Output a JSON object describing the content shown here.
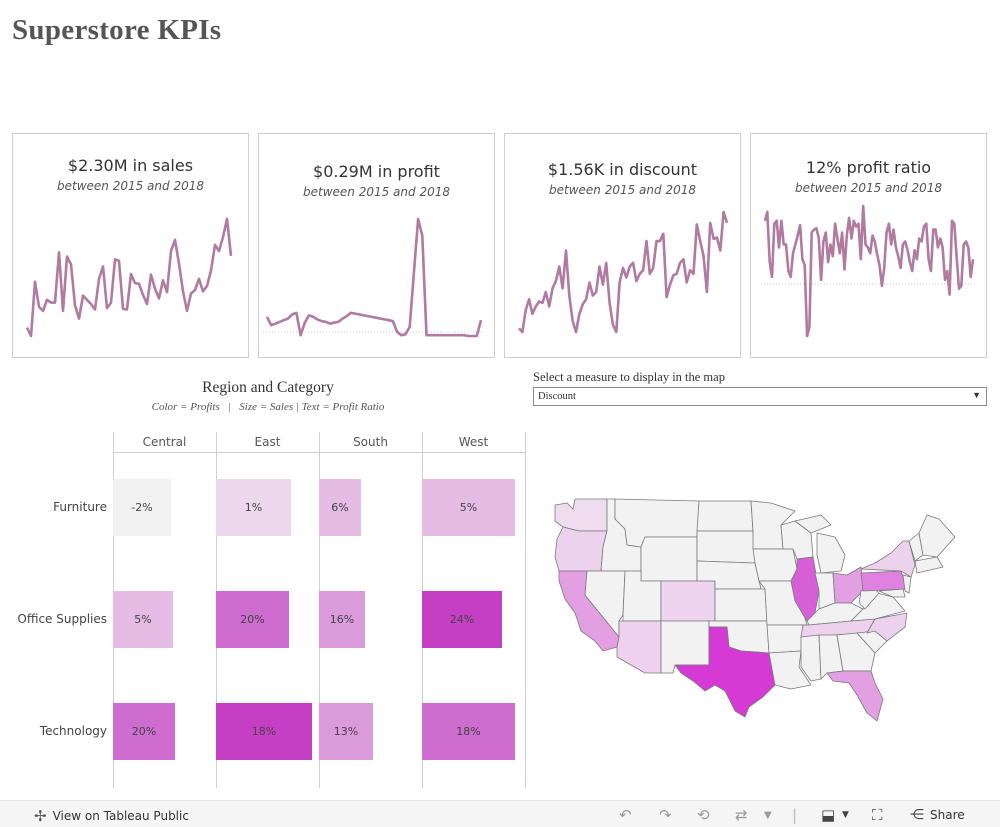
{
  "title": "Superstore  KPIs",
  "colors": {
    "line": "#b07aa1",
    "card_border": "#cfcfcf",
    "light": "#f1f1f1",
    "p1": "#ecd8ec",
    "p2": "#e4bce4",
    "p3": "#db9bdb",
    "p4": "#cf6ccf",
    "p5": "#c43fc4",
    "texas": "#d53ad5"
  },
  "kpis": [
    {
      "value": "$2.30M in sales",
      "subtitle": "between 2015 and 2018",
      "series": [
        22,
        10,
        88,
        52,
        46,
        62,
        58,
        58,
        130,
        46,
        124,
        113,
        54,
        35,
        68,
        62,
        56,
        48,
        92,
        110,
        50,
        58,
        120,
        118,
        49,
        48,
        99,
        86,
        85,
        69,
        56,
        98,
        78,
        64,
        90,
        73,
        132,
        148,
        114,
        74,
        46,
        71,
        76,
        92,
        74,
        82,
        104,
        141,
        132,
        152,
        178,
        125
      ]
    },
    {
      "value": "$0.29M in profit",
      "subtitle": "between 2015 and 2018",
      "series": [
        22,
        12,
        14,
        16,
        18,
        20,
        25,
        27,
        0,
        15,
        24,
        22,
        19,
        17,
        16,
        14,
        15,
        16,
        20,
        23,
        27,
        26,
        25,
        24,
        23,
        22,
        21,
        20,
        19,
        18,
        17,
        4,
        0,
        1,
        10,
        75,
        140,
        120,
        0,
        0,
        0,
        0,
        0,
        0,
        0,
        0,
        0,
        0,
        -1,
        -1,
        -1,
        18
      ]
    },
    {
      "value": "$1.56K in discount",
      "subtitle": "between 2015 and 2018",
      "series": [
        5,
        0,
        30,
        45,
        25,
        35,
        42,
        40,
        55,
        35,
        60,
        70,
        90,
        60,
        112,
        50,
        15,
        0,
        25,
        38,
        45,
        68,
        50,
        55,
        90,
        65,
        95,
        40,
        10,
        0,
        68,
        88,
        75,
        90,
        95,
        70,
        80,
        85,
        125,
        80,
        88,
        125,
        125,
        135,
        48,
        65,
        78,
        80,
        95,
        100,
        68,
        85,
        80,
        148,
        125,
        105,
        55,
        150,
        128,
        130,
        112,
        165,
        150
      ]
    },
    {
      "value": "12% profit ratio",
      "subtitle": "between 2015 and 2018",
      "series": [
        98,
        104,
        70,
        60,
        96,
        98,
        80,
        98,
        82,
        82,
        64,
        60,
        76,
        82,
        88,
        95,
        72,
        68,
        20,
        26,
        90,
        92,
        93,
        86,
        58,
        84,
        90,
        70,
        82,
        74,
        96,
        86,
        76,
        90,
        65,
        88,
        100,
        86,
        98,
        94,
        96,
        72,
        108,
        82,
        80,
        76,
        88,
        84,
        75,
        68,
        54,
        66,
        90,
        96,
        82,
        92,
        80,
        74,
        66,
        82,
        84,
        78,
        70,
        64,
        78,
        72,
        86,
        84,
        94,
        96,
        72,
        64,
        92,
        92,
        80,
        86,
        80,
        58,
        64,
        48,
        98,
        96,
        74,
        52,
        54,
        82,
        84,
        80,
        60,
        72
      ]
    }
  ],
  "region_category": {
    "title": "Region and Category",
    "subtitle": "Color = Profits   |   Size = Sales | Text = Profit Ratio",
    "regions": [
      "Central",
      "East",
      "South",
      "West"
    ],
    "categories": [
      "Furniture",
      "Office Supplies",
      "Technology"
    ],
    "cells": [
      [
        {
          "text": "-2%",
          "sales": 0.58,
          "color": "light"
        },
        {
          "text": "1%",
          "sales": 0.75,
          "color": "p1"
        },
        {
          "text": "6%",
          "sales": 0.42,
          "color": "p2"
        },
        {
          "text": "5%",
          "sales": 0.93,
          "color": "p2"
        }
      ],
      [
        {
          "text": "5%",
          "sales": 0.6,
          "color": "p2"
        },
        {
          "text": "20%",
          "sales": 0.73,
          "color": "p4"
        },
        {
          "text": "16%",
          "sales": 0.46,
          "color": "p3"
        },
        {
          "text": "24%",
          "sales": 0.8,
          "color": "p5"
        }
      ],
      [
        {
          "text": "20%",
          "sales": 0.62,
          "color": "p4"
        },
        {
          "text": "18%",
          "sales": 0.96,
          "color": "p5"
        },
        {
          "text": "13%",
          "sales": 0.54,
          "color": "p3"
        },
        {
          "text": "18%",
          "sales": 0.93,
          "color": "p4"
        }
      ]
    ]
  },
  "measure_selector": {
    "label": "Select a measure to display in the map",
    "value": "Discount"
  },
  "map": {
    "measure": "Discount"
  },
  "footer": {
    "view_label": "View on Tableau Public",
    "share_label": "Share"
  }
}
